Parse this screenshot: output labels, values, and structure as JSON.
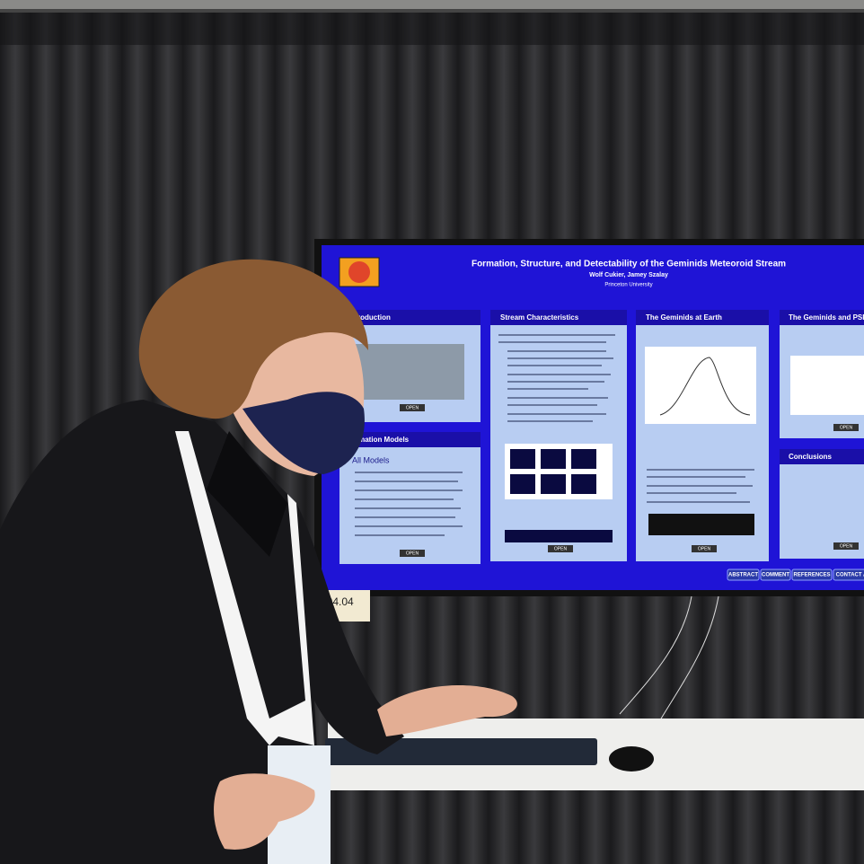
{
  "poster": {
    "title": "Formation, Structure, and Detectability of the Geminids Meteoroid Stream",
    "authors": "Wolf Cukier, Jamey Szalay",
    "affiliation": "Princeton University",
    "panels": [
      {
        "heading": "roduction"
      },
      {
        "heading": "rmation Models",
        "subheading": "All Models"
      },
      {
        "heading": "Stream Characteristics"
      },
      {
        "heading": "The Geminids at Earth"
      },
      {
        "heading": "The Geminids and PSP"
      },
      {
        "heading": "Conclusions"
      }
    ],
    "open_button": "OPEN",
    "nav_buttons": [
      "ABSTRACT",
      "COMMENT",
      "REFERENCES",
      "CONTACT A"
    ]
  },
  "booth_number": "104.04"
}
